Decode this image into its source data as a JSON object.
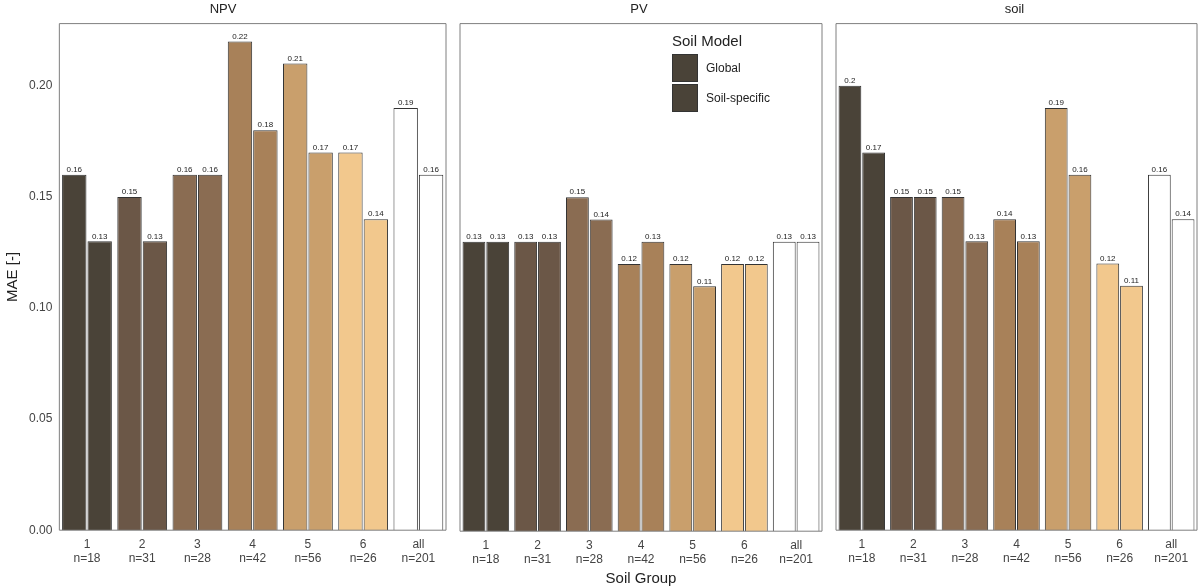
{
  "chart_data": [
    {
      "type": "bar",
      "title": "NPV",
      "ylabel": "MAE [-]",
      "categories": [
        "1\nn=18",
        "2\nn=31",
        "3\nn=28",
        "4\nn=42",
        "5\nn=56",
        "6\nn=26",
        "all\nn=201"
      ],
      "series": [
        {
          "colors": [
            "#4a4338",
            "#6b5747",
            "#8a6c52",
            "#a88159",
            "#c99f6c",
            "#f2c88d",
            "#ffffff"
          ],
          "values": [
            0.16,
            0.15,
            0.16,
            0.22,
            0.21,
            0.17,
            0.19
          ]
        },
        {
          "colors": [
            "#4a4338",
            "#6b5747",
            "#8a6c52",
            "#a88159",
            "#c99f6c",
            "#f2c88d",
            "#ffffff"
          ],
          "values": [
            0.13,
            0.13,
            0.16,
            0.18,
            0.17,
            0.14,
            0.16
          ]
        }
      ],
      "ylim": [
        0,
        0.228
      ],
      "yticks": [
        {
          "value": 0,
          "label": "0.00"
        },
        {
          "value": 0.05,
          "label": "0.05"
        },
        {
          "value": 0.1,
          "label": "0.10"
        },
        {
          "value": 0.15,
          "label": "0.15"
        },
        {
          "value": 0.2,
          "label": "0.20"
        }
      ],
      "data_labels": true,
      "grid": false,
      "legend": false
    },
    {
      "type": "bar",
      "title": "PV",
      "xlabel": "Soil Group",
      "legend_title": "Soil Model",
      "categories": [
        "1\nn=18",
        "2\nn=31",
        "3\nn=28",
        "4\nn=42",
        "5\nn=56",
        "6\nn=26",
        "all\nn=201"
      ],
      "series": [
        {
          "name": "Global",
          "colors": [
            "#4a4338",
            "#6b5747",
            "#8a6c52",
            "#a88159",
            "#c99f6c",
            "#f2c88d",
            "#ffffff"
          ],
          "values": [
            0.13,
            0.13,
            0.15,
            0.12,
            0.12,
            0.12,
            0.13
          ]
        },
        {
          "name": "Soil-specific",
          "colors": [
            "#4a4338",
            "#6b5747",
            "#8a6c52",
            "#a88159",
            "#c99f6c",
            "#f2c88d",
            "#ffffff"
          ],
          "values": [
            0.13,
            0.13,
            0.14,
            0.13,
            0.11,
            0.12,
            0.13
          ]
        }
      ],
      "ylim": [
        0,
        0.228
      ],
      "tick_labels": "x",
      "data_labels": true,
      "grid": false,
      "legend": "top right"
    },
    {
      "type": "bar",
      "title": "soil",
      "categories": [
        "1\nn=18",
        "2\nn=31",
        "3\nn=28",
        "4\nn=42",
        "5\nn=56",
        "6\nn=26",
        "all\nn=201"
      ],
      "series": [
        {
          "colors": [
            "#4a4338",
            "#6b5747",
            "#8a6c52",
            "#a88159",
            "#c99f6c",
            "#f2c88d",
            "#ffffff"
          ],
          "values": [
            0.2,
            0.15,
            0.15,
            0.14,
            0.19,
            0.12,
            0.16
          ]
        },
        {
          "colors": [
            "#4a4338",
            "#6b5747",
            "#8a6c52",
            "#a88159",
            "#c99f6c",
            "#f2c88d",
            "#ffffff"
          ],
          "values": [
            0.17,
            0.15,
            0.13,
            0.13,
            0.16,
            0.11,
            0.14
          ]
        }
      ],
      "ylim": [
        0,
        0.228
      ],
      "tick_labels": "x",
      "data_labels": true,
      "grid": false,
      "legend": false
    }
  ]
}
